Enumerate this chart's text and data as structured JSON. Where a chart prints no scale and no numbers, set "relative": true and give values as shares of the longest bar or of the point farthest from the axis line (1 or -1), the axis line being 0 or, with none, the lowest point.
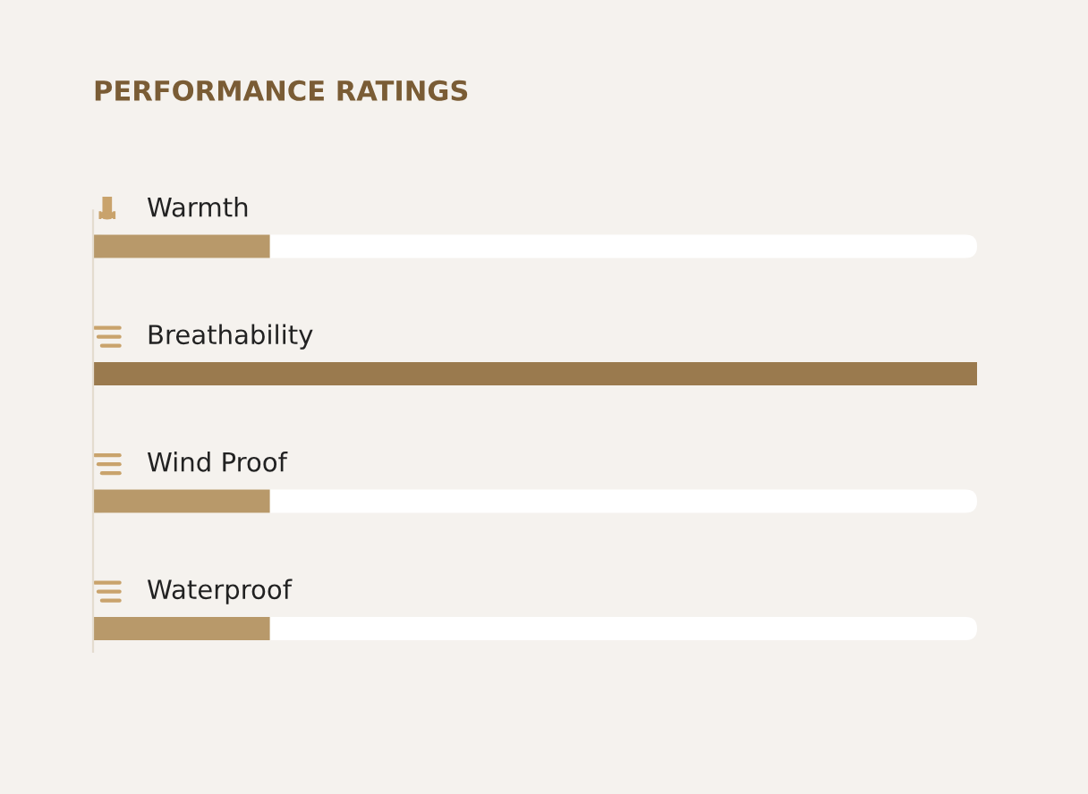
{
  "chart_data": {
    "type": "bar",
    "orientation": "horizontal",
    "relative": true,
    "title": "PERFORMANCE RATINGS",
    "categories": [
      "Warmth",
      "Breathability",
      "Wind Proof",
      "Waterproof"
    ],
    "values": [
      0.2,
      1,
      0.2,
      0.2
    ],
    "colors": [
      "#b8996a",
      "#9a7a4e",
      "#b8996a",
      "#b8996a"
    ]
  }
}
